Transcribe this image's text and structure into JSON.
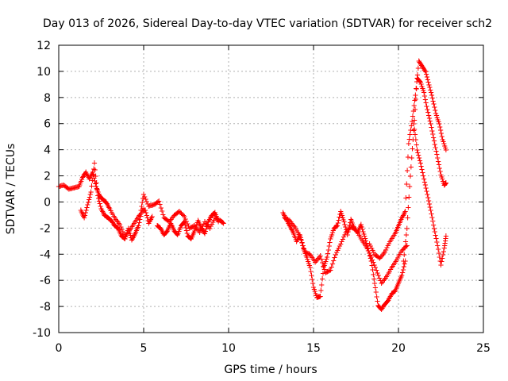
{
  "chart_data": {
    "type": "scatter",
    "title": "Day 013 of 2026, Sidereal Day-to-day VTEC variation (SDTVAR) for receiver sch2",
    "xlabel": "GPS time / hours",
    "ylabel": "SDTVAR / TECUs",
    "xlim": [
      0,
      25
    ],
    "ylim": [
      -10,
      12
    ],
    "x_ticks": [
      0,
      5,
      10,
      15,
      20,
      25
    ],
    "y_ticks": [
      -10,
      -8,
      -6,
      -4,
      -2,
      0,
      2,
      4,
      6,
      8,
      10,
      12
    ],
    "grid": true,
    "marker": "+",
    "series": [
      {
        "name": "SDTVAR",
        "color": "#ff0000",
        "segments": [
          {
            "x": [
              0.0,
              0.3,
              0.6,
              0.9,
              1.2,
              1.4,
              1.6,
              1.8,
              2.0,
              2.2,
              2.4,
              2.6,
              2.8,
              3.0,
              3.3,
              3.6,
              3.9,
              4.2,
              4.5,
              4.8,
              5.0,
              5.3,
              5.6,
              5.9,
              6.2,
              6.5,
              6.8,
              7.1,
              7.4,
              7.7,
              8.0,
              8.3,
              8.6,
              8.9,
              9.2,
              9.5,
              9.7
            ],
            "y": [
              1.2,
              1.3,
              1.0,
              1.1,
              1.2,
              1.9,
              2.3,
              1.8,
              2.3,
              1.2,
              0.5,
              0.2,
              0.0,
              -0.5,
              -1.2,
              -1.7,
              -2.6,
              -2.1,
              -1.5,
              -0.9,
              0.6,
              -0.3,
              -0.2,
              0.1,
              -1.2,
              -1.5,
              -1.0,
              -0.7,
              -1.1,
              -2.0,
              -1.8,
              -2.3,
              -1.5,
              -2.0,
              -1.2,
              -1.4,
              -1.6
            ]
          },
          {
            "x": [
              1.3,
              1.5,
              1.7,
              1.9,
              2.1,
              2.3,
              2.5,
              2.7,
              2.9,
              3.1,
              3.3,
              3.5,
              3.7,
              3.9,
              4.1,
              4.3,
              4.5,
              4.7,
              4.9,
              5.1,
              5.3,
              5.5
            ],
            "y": [
              -0.6,
              -1.2,
              -0.2,
              0.8,
              3.0,
              0.5,
              -0.5,
              -1.0,
              -1.2,
              -1.4,
              -1.8,
              -2.0,
              -2.6,
              -2.8,
              -2.0,
              -2.9,
              -2.4,
              -1.8,
              -0.6,
              -0.6,
              -1.6,
              -1.1
            ]
          },
          {
            "x": [
              5.8,
              6.0,
              6.2,
              6.4,
              6.6,
              6.8,
              7.0,
              7.2,
              7.4,
              7.6,
              7.8,
              8.0,
              8.2,
              8.4,
              8.6,
              8.8,
              9.0,
              9.2,
              9.4
            ],
            "y": [
              -1.8,
              -2.0,
              -2.5,
              -2.2,
              -1.6,
              -2.2,
              -2.5,
              -1.8,
              -1.5,
              -2.6,
              -2.8,
              -2.2,
              -1.4,
              -2.0,
              -2.4,
              -1.5,
              -1.0,
              -0.8,
              -1.5
            ]
          },
          {
            "x": [
              13.2,
              13.4,
              13.6,
              13.8,
              14.0,
              14.2,
              14.4,
              14.6,
              14.8,
              15.0,
              15.2,
              15.4,
              15.6,
              15.8,
              16.0,
              16.2,
              16.4,
              16.6,
              16.8,
              17.0,
              17.2,
              17.4,
              17.6,
              17.8,
              18.0,
              18.2,
              18.4,
              18.6,
              18.8,
              19.0,
              19.2,
              19.4,
              19.6,
              19.8,
              20.0,
              20.2,
              20.4
            ],
            "y": [
              -0.8,
              -1.3,
              -1.8,
              -2.3,
              -3.0,
              -2.5,
              -3.5,
              -4.2,
              -5.0,
              -6.5,
              -7.3,
              -7.2,
              -5.0,
              -4.2,
              -2.8,
              -2.0,
              -1.8,
              -0.7,
              -1.5,
              -2.5,
              -1.3,
              -2.0,
              -2.3,
              -1.7,
              -2.6,
              -3.5,
              -4.5,
              -6.2,
              -7.9,
              -8.2,
              -7.8,
              -7.5,
              -7.0,
              -6.8,
              -6.2,
              -5.6,
              -4.5
            ]
          },
          {
            "x": [
              13.3,
              13.6,
              13.9,
              14.2,
              14.5,
              14.8,
              15.1,
              15.4,
              15.7,
              16.0,
              16.3,
              16.6,
              16.9,
              17.2,
              17.5,
              17.8,
              18.1,
              18.4,
              18.7,
              19.0,
              19.3,
              19.6,
              19.9,
              20.2,
              20.5
            ],
            "y": [
              -1.2,
              -1.4,
              -1.9,
              -2.6,
              -3.8,
              -4.0,
              -4.6,
              -4.1,
              -5.4,
              -5.2,
              -4.0,
              -3.2,
              -2.3,
              -1.9,
              -2.1,
              -2.8,
              -3.4,
              -4.2,
              -5.2,
              -6.2,
              -5.7,
              -5.0,
              -4.4,
              -3.7,
              -3.3
            ]
          },
          {
            "x": [
              18.3,
              18.6,
              18.9,
              19.2,
              19.5,
              19.8,
              20.0,
              20.2,
              20.4,
              20.6,
              20.8,
              21.0,
              21.2,
              21.4,
              21.6,
              21.8,
              22.0,
              22.2,
              22.4,
              22.6,
              22.8
            ],
            "y": [
              -3.2,
              -4.0,
              -4.3,
              -3.8,
              -3.0,
              -2.4,
              -1.8,
              -1.2,
              -0.7,
              4.5,
              6.2,
              8.2,
              10.8,
              10.4,
              10.0,
              9.0,
              8.0,
              6.8,
              6.0,
              4.8,
              4.0
            ]
          },
          {
            "x": [
              20.3,
              20.5,
              20.7,
              20.9,
              21.1,
              21.3,
              21.5,
              21.7,
              21.9,
              22.1,
              22.3,
              22.5,
              22.7,
              22.8
            ],
            "y": [
              -4.5,
              -2.0,
              2.0,
              5.5,
              9.5,
              9.2,
              8.4,
              7.1,
              6.0,
              4.7,
              3.4,
              2.1,
              1.3,
              1.5
            ]
          },
          {
            "x": [
              20.9,
              21.1,
              21.3,
              21.5,
              21.7,
              21.9,
              22.1,
              22.3,
              22.5,
              22.7,
              22.8
            ],
            "y": [
              6.0,
              4.0,
              3.0,
              1.8,
              0.6,
              -0.6,
              -2.0,
              -3.3,
              -4.8,
              -3.5,
              -2.6
            ]
          }
        ]
      }
    ]
  }
}
